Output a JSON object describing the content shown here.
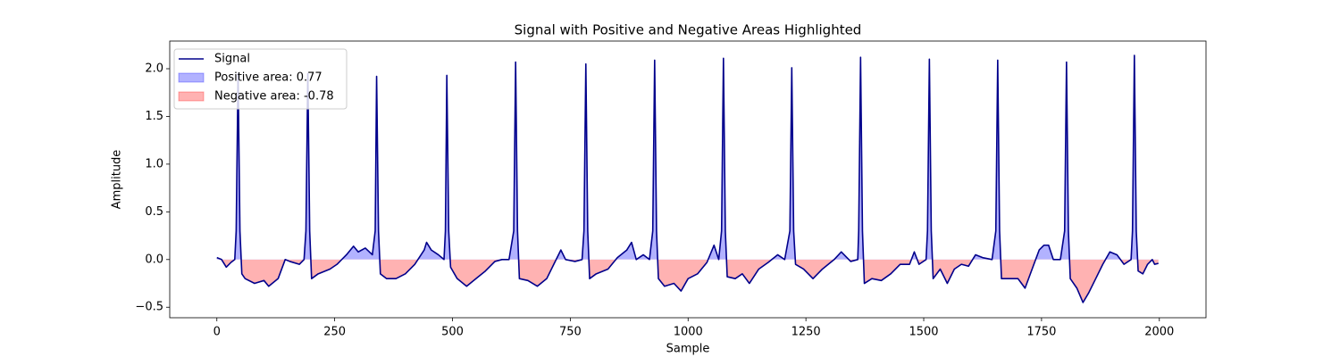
{
  "chart_data": {
    "type": "line",
    "title": "Signal with Positive and Negative Areas Highlighted",
    "xlabel": "Sample",
    "ylabel": "Amplitude",
    "x": [
      0,
      10,
      20,
      30,
      38,
      41,
      45,
      49,
      53,
      60,
      80,
      100,
      110,
      130,
      145,
      155,
      175,
      185,
      189,
      193,
      197,
      201,
      215,
      240,
      255,
      275,
      290,
      300,
      315,
      330,
      336,
      339,
      343,
      347,
      360,
      380,
      400,
      420,
      440,
      445,
      455,
      470,
      482,
      485,
      488,
      492,
      496,
      510,
      530,
      550,
      570,
      590,
      605,
      620,
      630,
      634,
      638,
      642,
      660,
      680,
      700,
      715,
      730,
      740,
      760,
      775,
      779,
      783,
      787,
      791,
      805,
      830,
      850,
      870,
      880,
      890,
      905,
      918,
      925,
      929,
      933,
      937,
      950,
      970,
      985,
      1000,
      1020,
      1040,
      1055,
      1065,
      1071,
      1075,
      1079,
      1083,
      1100,
      1115,
      1130,
      1150,
      1170,
      1190,
      1205,
      1216,
      1220,
      1224,
      1228,
      1245,
      1265,
      1285,
      1310,
      1325,
      1345,
      1360,
      1362,
      1366,
      1370,
      1374,
      1390,
      1410,
      1430,
      1450,
      1470,
      1480,
      1490,
      1505,
      1508,
      1512,
      1516,
      1520,
      1535,
      1550,
      1565,
      1580,
      1595,
      1610,
      1625,
      1645,
      1653,
      1657,
      1661,
      1665,
      1680,
      1700,
      1715,
      1730,
      1745,
      1755,
      1765,
      1775,
      1790,
      1799,
      1803,
      1807,
      1811,
      1825,
      1838,
      1850,
      1865,
      1880,
      1895,
      1910,
      1925,
      1940,
      1943,
      1947,
      1951,
      1955,
      1965,
      1975,
      1985,
      1990,
      1998
    ],
    "series": [
      {
        "name": "Signal",
        "color": "#00008b",
        "values": [
          0.02,
          0.0,
          -0.08,
          -0.03,
          0.0,
          0.3,
          1.95,
          0.3,
          -0.15,
          -0.2,
          -0.25,
          -0.22,
          -0.28,
          -0.2,
          0.0,
          -0.02,
          -0.05,
          0.0,
          0.3,
          1.95,
          0.3,
          -0.2,
          -0.15,
          -0.1,
          -0.05,
          0.05,
          0.14,
          0.08,
          0.12,
          0.05,
          0.3,
          1.92,
          0.3,
          -0.15,
          -0.2,
          -0.2,
          -0.15,
          -0.05,
          0.1,
          0.18,
          0.1,
          0.05,
          0.0,
          0.3,
          1.93,
          0.3,
          -0.08,
          -0.2,
          -0.28,
          -0.2,
          -0.12,
          -0.02,
          0.0,
          0.0,
          0.3,
          2.07,
          0.3,
          -0.2,
          -0.22,
          -0.28,
          -0.2,
          -0.05,
          0.1,
          0.0,
          -0.02,
          0.0,
          0.3,
          2.05,
          0.3,
          -0.2,
          -0.15,
          -0.1,
          0.02,
          0.1,
          0.18,
          0.0,
          0.05,
          0.0,
          0.3,
          2.09,
          0.3,
          -0.2,
          -0.28,
          -0.25,
          -0.33,
          -0.2,
          -0.15,
          -0.03,
          0.15,
          0.0,
          0.3,
          2.11,
          0.3,
          -0.18,
          -0.2,
          -0.15,
          -0.25,
          -0.1,
          -0.03,
          0.05,
          0.0,
          0.3,
          2.01,
          0.3,
          -0.05,
          -0.1,
          -0.2,
          -0.1,
          0.0,
          0.08,
          -0.02,
          0.0,
          0.3,
          2.12,
          0.3,
          -0.25,
          -0.2,
          -0.22,
          -0.15,
          -0.05,
          -0.05,
          0.08,
          -0.05,
          0.0,
          0.3,
          2.1,
          0.3,
          -0.2,
          -0.1,
          -0.25,
          -0.1,
          -0.05,
          -0.07,
          0.05,
          0.02,
          0.0,
          0.3,
          2.09,
          0.3,
          -0.2,
          -0.2,
          -0.2,
          -0.3,
          -0.1,
          0.1,
          0.15,
          0.15,
          0.0,
          0.0,
          0.3,
          2.07,
          0.3,
          -0.2,
          -0.3,
          -0.45,
          -0.35,
          -0.2,
          -0.05,
          0.08,
          0.05,
          -0.05,
          0.0,
          0.3,
          2.14,
          0.3,
          -0.12,
          -0.15,
          -0.05,
          0.0,
          -0.05,
          -0.04
        ]
      }
    ],
    "fills": [
      {
        "name": "Positive area: 0.77",
        "color": "#0000ff"
      },
      {
        "name": "Negative area: -0.78",
        "color": "#ff0000"
      }
    ],
    "xlim": [
      -100,
      2099
    ],
    "ylim": [
      -0.61,
      2.29
    ],
    "xticks": [
      0,
      250,
      500,
      750,
      1000,
      1250,
      1500,
      1750,
      2000
    ],
    "yticks": [
      {
        "value": -0.5,
        "label": "−0.5"
      },
      {
        "value": 0,
        "label": "0.0"
      },
      0.5,
      {
        "value": 1,
        "label": "1.0"
      },
      1.5,
      {
        "value": 2,
        "label": "2.0"
      }
    ],
    "legend": "upper left"
  }
}
